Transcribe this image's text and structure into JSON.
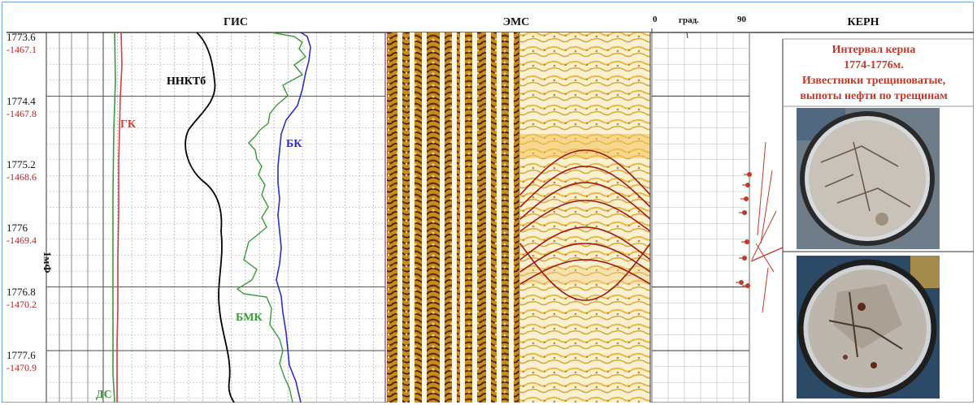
{
  "headers": {
    "gis": "ГИС",
    "ems": "ЭМС",
    "kern": "КЕРН",
    "incl_min": "0",
    "incl_unit": "град.",
    "incl_max": "90"
  },
  "depth_marks": [
    {
      "md": "1773.6",
      "abs": "-1467.1"
    },
    {
      "md": "1774.4",
      "abs": "-1467.8"
    },
    {
      "md": "1775.2",
      "abs": "-1468.6"
    },
    {
      "md": "1776",
      "abs": "-1469.4"
    },
    {
      "md": "1776.8",
      "abs": "-1470.2"
    },
    {
      "md": "1777.6",
      "abs": "-1470.9"
    }
  ],
  "track_label": "1мФ",
  "curve_labels": {
    "gk": "ГК",
    "nnkt": "ННКТб",
    "bk": "БК",
    "bmk": "БМК",
    "ds": "ДС"
  },
  "core": {
    "line1": "Интервал керна",
    "line2": "1774-1776м.",
    "line3": "Известняки трещиноватые,",
    "line4": "выпоты нефти по трещинам"
  },
  "colors": {
    "gk": "#d04040",
    "nnkt": "#000000",
    "bk": "#2e2ebf",
    "bmk": "#3a9a3a",
    "ds": "#3a9a3a",
    "sinusoid": "#a01818",
    "core_text": "#c0392b"
  }
}
